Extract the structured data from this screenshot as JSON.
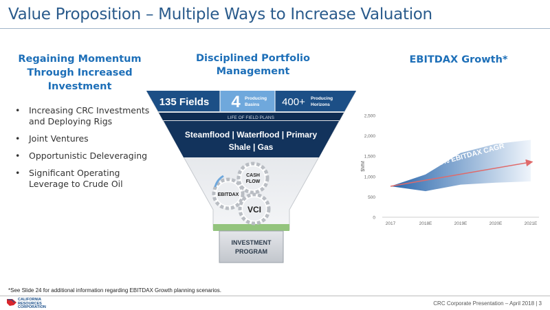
{
  "slide": {
    "title": "Value Proposition – Multiple Ways to Increase Valuation",
    "footnote": "*See Slide 24 for additional information regarding EBITDAX Growth planning scenarios.",
    "footer": "CRC Corporate Presentation – April 2018 | 3",
    "logo_lines": [
      "CALIFORNIA",
      "RESOURCES",
      "CORPORATION"
    ]
  },
  "left": {
    "heading_lines": [
      "Regaining Momentum",
      "Through Increased",
      "Investment"
    ],
    "bullets": [
      "Increasing CRC Investments and Deploying Rigs",
      "Joint Ventures",
      "Opportunistic Deleveraging",
      "Significant Operating Leverage to Crude Oil"
    ]
  },
  "middle": {
    "heading_lines": [
      "Disciplined Portfolio",
      "Management"
    ],
    "fields": "135 Fields",
    "basins_num": "4",
    "basins_label_lines": [
      "Producing",
      "Basins"
    ],
    "horizons_num": "400+",
    "horizons_label_lines": [
      "Producing",
      "Horizons"
    ],
    "life_plans": "LIFE OF FIELD PLANS",
    "recovery_lines": [
      "Steamflood | Waterflood | Primary",
      "Shale | Gas"
    ],
    "gear_ebitdax": "EBITDAX",
    "gear_cashflow_lines": [
      "CASH",
      "FLOW"
    ],
    "gear_vci": "VCI",
    "program_lines": [
      "INVESTMENT",
      "PROGRAM"
    ]
  },
  "right": {
    "heading": "EBITDAX Growth*"
  },
  "chart_data": {
    "type": "area",
    "ylabel": "$MM",
    "categories": [
      "2017",
      "2018E",
      "2019E",
      "2020E",
      "2021E"
    ],
    "ylim": [
      0,
      2500
    ],
    "yticks": [
      "0",
      "500",
      "1,000",
      "1,500",
      "2,000",
      "2,500"
    ],
    "band_upper": [
      760,
      1050,
      1580,
      1800,
      1900
    ],
    "band_lower": [
      760,
      640,
      800,
      850,
      880
    ],
    "trend_start": 760,
    "trend_end": 1360,
    "annotation": "15% EBITDAX CAGR",
    "colors": {
      "band_dark": "#1f5fa8",
      "band_light": "#eef4fb",
      "trend": "#e06a6a"
    }
  }
}
